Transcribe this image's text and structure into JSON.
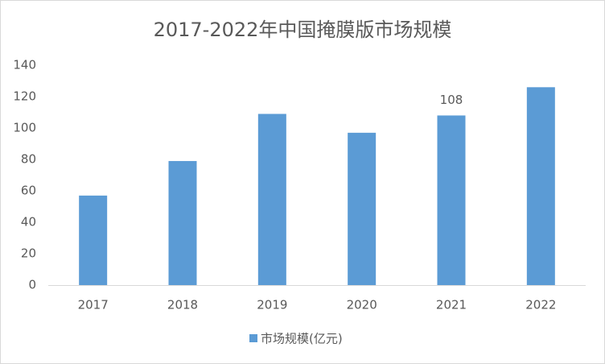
{
  "chart_data": {
    "type": "bar",
    "title": "2017-2022年中国掩膜版市场规模",
    "categories": [
      "2017",
      "2018",
      "2019",
      "2020",
      "2021",
      "2022"
    ],
    "series": [
      {
        "name": "市场规模(亿元)",
        "color": "#5b9bd5",
        "values": [
          57,
          79,
          109,
          97,
          108,
          126
        ],
        "value_labels": [
          null,
          null,
          null,
          null,
          "108",
          null
        ]
      }
    ],
    "ylim": [
      0,
      140
    ],
    "yticks": [
      0,
      20,
      40,
      60,
      80,
      100,
      120,
      140
    ],
    "grid": false,
    "legend": "bottom"
  }
}
